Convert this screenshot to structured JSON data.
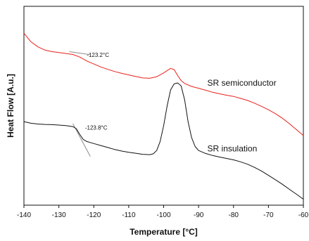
{
  "chart_data": {
    "type": "line",
    "xlabel": "Temperature [°C]",
    "ylabel": "Heat Flow [A.u.]",
    "xlim": [
      -140,
      -60
    ],
    "ylim": [
      0,
      1
    ],
    "x_ticks": [
      -140,
      -130,
      -120,
      -110,
      -100,
      -90,
      -80,
      -70,
      -60
    ],
    "y_ticks_shown": false,
    "grid": false,
    "series": [
      {
        "name": "SR semiconductor",
        "color": "#e8211b",
        "x": [
          -140,
          -138,
          -136,
          -134,
          -132,
          -130,
          -128,
          -126,
          -124,
          -122,
          -120,
          -118,
          -116,
          -114,
          -112,
          -110,
          -108,
          -106,
          -104,
          -102,
          -100,
          -99,
          -98,
          -97,
          -96,
          -95,
          -94,
          -92,
          -90,
          -88,
          -86,
          -84,
          -82,
          -80,
          -78,
          -76,
          -74,
          -72,
          -70,
          -68,
          -66,
          -64,
          -62,
          -60
        ],
        "y": [
          0.865,
          0.822,
          0.796,
          0.78,
          0.772,
          0.768,
          0.763,
          0.758,
          0.745,
          0.725,
          0.71,
          0.695,
          0.683,
          0.672,
          0.663,
          0.655,
          0.647,
          0.64,
          0.638,
          0.646,
          0.665,
          0.677,
          0.688,
          0.682,
          0.652,
          0.627,
          0.612,
          0.597,
          0.588,
          0.578,
          0.568,
          0.56,
          0.553,
          0.547,
          0.537,
          0.527,
          0.513,
          0.497,
          0.48,
          0.46,
          0.437,
          0.41,
          0.38,
          0.35
        ]
      },
      {
        "name": "SR insulation",
        "color": "#111111",
        "x": [
          -140,
          -138,
          -136,
          -134,
          -132,
          -130,
          -128,
          -126,
          -125,
          -124,
          -123,
          -122,
          -120,
          -118,
          -116,
          -114,
          -112,
          -110,
          -108,
          -106,
          -104,
          -103,
          -102,
          -101,
          -100,
          -99,
          -98,
          -97,
          -96,
          -95,
          -94,
          -93,
          -92,
          -91,
          -90,
          -88,
          -86,
          -84,
          -82,
          -80,
          -78,
          -76,
          -74,
          -72,
          -70,
          -68,
          -66,
          -64,
          -62,
          -60
        ],
        "y": [
          0.42,
          0.412,
          0.408,
          0.406,
          0.405,
          0.403,
          0.4,
          0.395,
          0.385,
          0.355,
          0.33,
          0.32,
          0.31,
          0.3,
          0.29,
          0.28,
          0.272,
          0.266,
          0.261,
          0.256,
          0.254,
          0.258,
          0.275,
          0.32,
          0.4,
          0.5,
          0.58,
          0.61,
          0.615,
          0.6,
          0.53,
          0.42,
          0.34,
          0.295,
          0.275,
          0.26,
          0.25,
          0.242,
          0.235,
          0.228,
          0.218,
          0.206,
          0.19,
          0.172,
          0.15,
          0.128,
          0.105,
          0.08,
          0.055,
          0.03
        ]
      }
    ],
    "annotations": [
      {
        "text": "-123.2°C",
        "x": -122,
        "y": 0.745
      },
      {
        "text": "-123.8°C",
        "x": -122.5,
        "y": 0.38
      }
    ],
    "series_labels": [
      {
        "text": "SR semiconductor",
        "x": -87.5,
        "y": 0.6
      },
      {
        "text": "SR insulation",
        "x": -87.5,
        "y": 0.27
      }
    ],
    "tangent_lines": [
      {
        "x1": -127,
        "y1": 0.772,
        "x2": -121,
        "y2": 0.757
      },
      {
        "x1": -126,
        "y1": 0.41,
        "x2": -121,
        "y2": 0.245
      }
    ]
  }
}
